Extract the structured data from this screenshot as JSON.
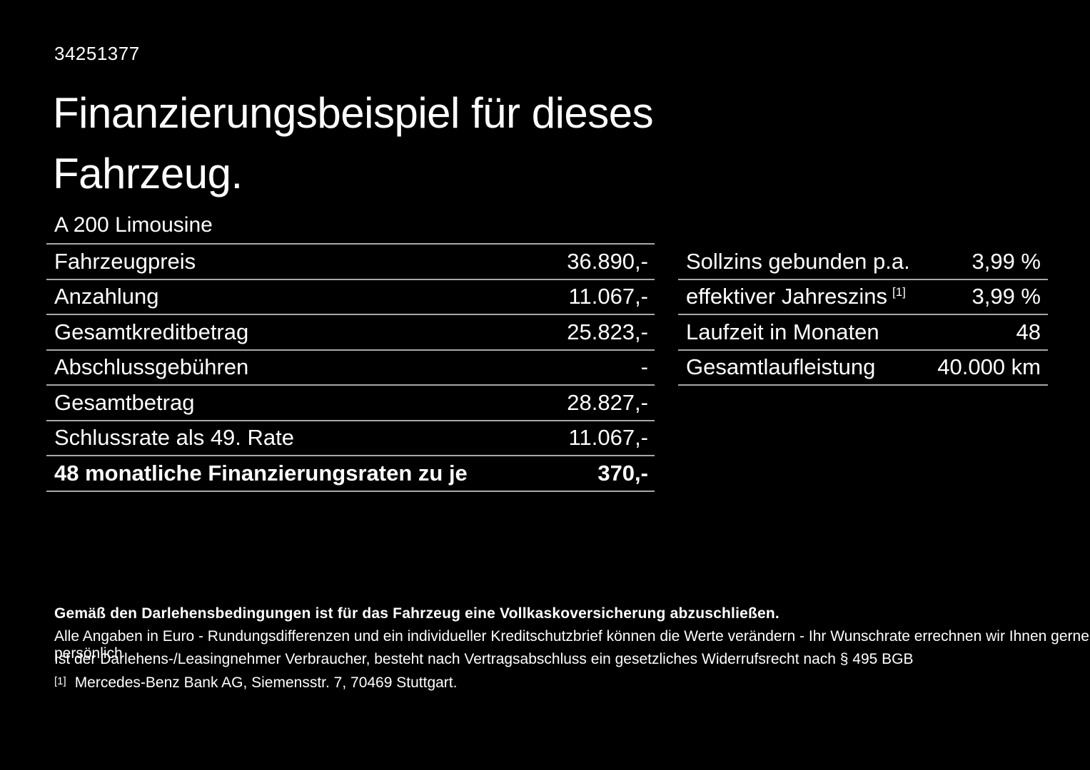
{
  "page": {
    "id_number": "34251377",
    "title_line1": "Finanzierungsbeispiel für dieses",
    "title_line2": "Fahrzeug.",
    "vehicle_name": "A 200 Limousine"
  },
  "finance_table": {
    "rows": [
      {
        "label": "Fahrzeugpreis",
        "value": "36.890,-"
      },
      {
        "label": "Anzahlung",
        "value": "11.067,-"
      },
      {
        "label": "Gesamtkreditbetrag",
        "value": "25.823,-"
      },
      {
        "label": "Abschlussgebühren",
        "value": "-"
      },
      {
        "label": "Gesamtbetrag",
        "value": "28.827,-"
      },
      {
        "label": "Schlussrate als 49. Rate",
        "value": "11.067,-"
      },
      {
        "label": "48 monatliche Finanzierungsraten zu je",
        "value": "370,-"
      }
    ]
  },
  "conditions_table": {
    "rows": [
      {
        "label": "Sollzins gebunden p.a.",
        "superscript": "",
        "value": "3,99 %"
      },
      {
        "label": "effektiver Jahreszins",
        "superscript": "[1]",
        "value": "3,99 %"
      },
      {
        "label": "Laufzeit in Monaten",
        "superscript": "",
        "value": "48"
      },
      {
        "label": "Gesamtlaufleistung",
        "superscript": "",
        "value": "40.000 km"
      }
    ]
  },
  "footer": {
    "insurance_note": "Gemäß den Darlehensbedingungen ist für das Fahrzeug eine Vollkaskoversicherung abzuschließen.",
    "note_line1": "Alle Angaben in Euro - Rundungsdifferenzen und ein individueller Kreditschutzbrief können die Werte verändern - Ihr Wunschrate errechnen wir Ihnen gerne persönlich",
    "note_line2": "Ist der Darlehens-/Leasingnehmer Verbraucher, besteht nach Vertragsabschluss ein gesetzliches Widerrufsrecht nach § 495 BGB",
    "footnote_marker": "[1]",
    "footnote_text": "Mercedes-Benz Bank AG, Siemensstr. 7, 70469 Stuttgart."
  },
  "colors": {
    "background": "#000000",
    "text": "#ffffff",
    "divider": "#a8a8a8"
  }
}
